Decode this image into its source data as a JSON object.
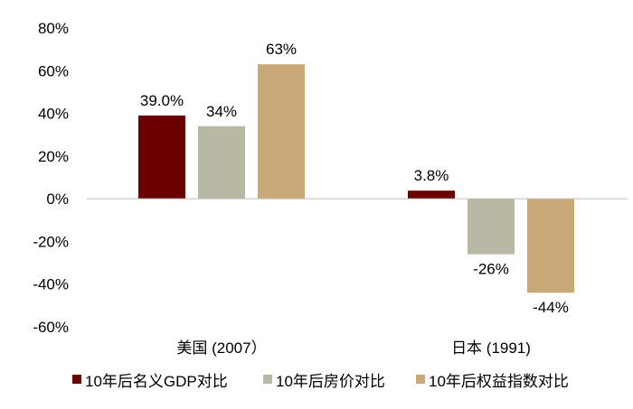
{
  "chart_data": {
    "type": "bar",
    "categories": [
      "美国 (2007）",
      "日本 (1991)"
    ],
    "series": [
      {
        "name": "10年后名义GDP对比",
        "values": [
          39.0,
          3.8
        ],
        "labels": [
          "39.0%",
          "3.8%"
        ],
        "color": "#6b0000"
      },
      {
        "name": "10年后房价对比",
        "values": [
          34,
          -26
        ],
        "labels": [
          "34%",
          "-26%"
        ],
        "color": "#b9b8a5"
      },
      {
        "name": "10年后权益指数对比",
        "values": [
          63,
          -44
        ],
        "labels": [
          "63%",
          "-44%"
        ],
        "color": "#c9a878"
      }
    ],
    "ylim": [
      -60,
      80
    ],
    "yticks": [
      "-60%",
      "-40%",
      "-20%",
      "0%",
      "20%",
      "40%",
      "60%",
      "80%"
    ],
    "ytick_values": [
      -60,
      -40,
      -20,
      0,
      20,
      40,
      60,
      80
    ],
    "grid": false,
    "legend": "bottom",
    "xlabel": "",
    "ylabel": "",
    "title": ""
  }
}
